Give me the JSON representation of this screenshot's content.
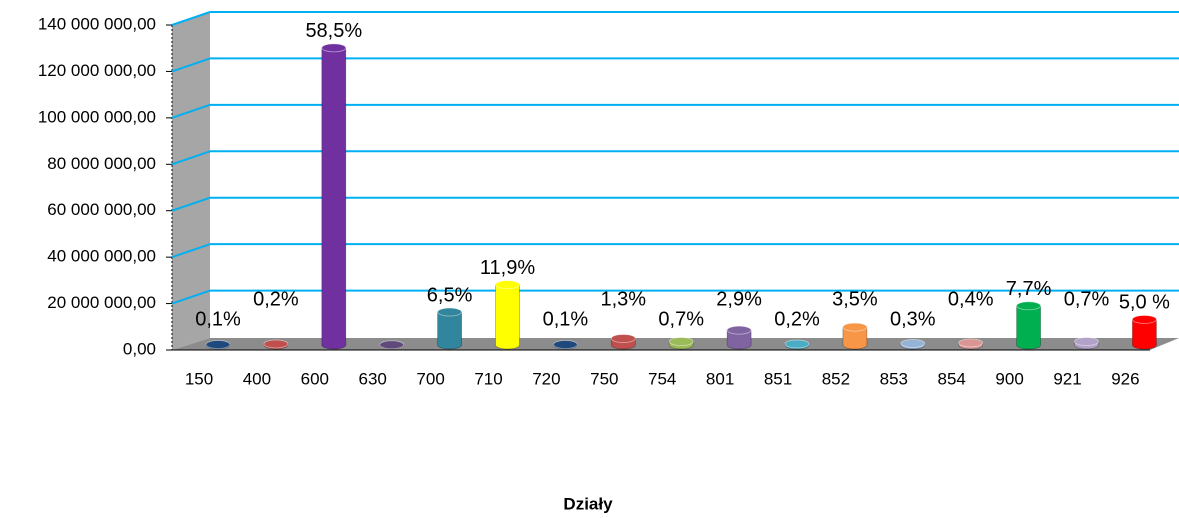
{
  "chart_data": {
    "type": "bar3d",
    "xlabel": "Działy",
    "categories": [
      "150",
      "400",
      "600",
      "630",
      "700",
      "710",
      "720",
      "750",
      "754",
      "801",
      "851",
      "852",
      "853",
      "854",
      "900",
      "921",
      "926"
    ],
    "values": [
      200000,
      440000,
      128000000,
      100000,
      14200000,
      26000000,
      200000,
      2800000,
      1500000,
      6400000,
      440000,
      7700000,
      660000,
      900000,
      16900000,
      1500000,
      11000000
    ],
    "percent_labels": [
      "0,1%",
      "0,2%",
      "58,5%",
      null,
      "6,5%",
      "11,9%",
      "0,1%",
      "1,3%",
      "0,7%",
      "2,9%",
      "0,2%",
      "3,5%",
      "0,3%",
      "0,4%",
      "7,7%",
      "0,7%",
      "5,0 %"
    ],
    "colors": [
      "#1f497d",
      "#c0504d",
      "#7030a0",
      "#604a7b",
      "#31859c",
      "#ffff00",
      "#1f497d",
      "#c0504d",
      "#9bbb59",
      "#8064a2",
      "#4bacc6",
      "#f79646",
      "#95b3d7",
      "#d99694",
      "#00b050",
      "#b3a2c7",
      "#ff0000"
    ],
    "ylim": [
      0,
      140000000
    ],
    "yticks": [
      {
        "value": 0,
        "label": "0,00"
      },
      {
        "value": 20000000,
        "label": "20 000 000,00"
      },
      {
        "value": 40000000,
        "label": "40 000 000,00"
      },
      {
        "value": 60000000,
        "label": "60 000 000,00"
      },
      {
        "value": 80000000,
        "label": "80 000 000,00"
      },
      {
        "value": 100000000,
        "label": "100 000 000,00"
      },
      {
        "value": 120000000,
        "label": "120 000 000,00"
      },
      {
        "value": 140000000,
        "label": "140 000 000,00"
      }
    ],
    "grid": true
  }
}
